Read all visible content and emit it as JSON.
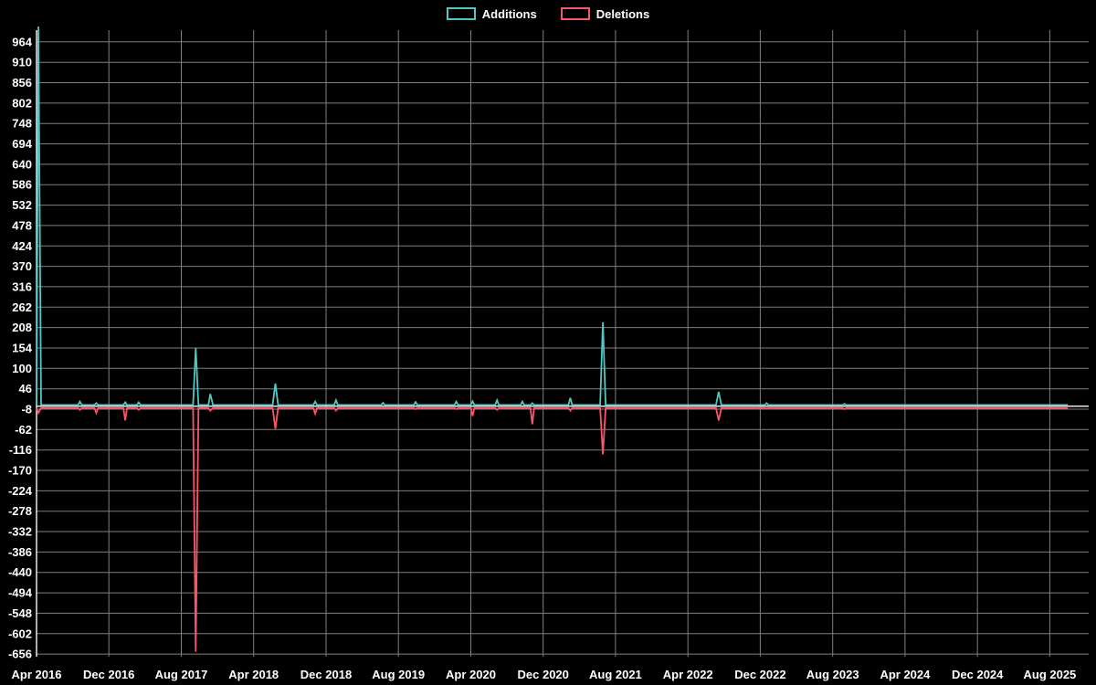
{
  "page": {
    "background_color": "#000000",
    "text_color": "#ffffff"
  },
  "chart_data": {
    "type": "line",
    "title": "",
    "legend_position": "top",
    "grid": true,
    "grid_color": "#7f7f7f",
    "axis_color": "#e9e9e9",
    "text_color": "#ffffff",
    "x_unit": "months since Apr 2016",
    "xlim": [
      0,
      116.3
    ],
    "ylim": [
      -663,
      995
    ],
    "x_axis": {
      "ticks": [
        {
          "m": 0,
          "label": "Apr 2016"
        },
        {
          "m": 8,
          "label": "Dec 2016"
        },
        {
          "m": 16,
          "label": "Aug 2017"
        },
        {
          "m": 24,
          "label": "Apr 2018"
        },
        {
          "m": 32,
          "label": "Dec 2018"
        },
        {
          "m": 40,
          "label": "Aug 2019"
        },
        {
          "m": 48,
          "label": "Apr 2020"
        },
        {
          "m": 56,
          "label": "Dec 2020"
        },
        {
          "m": 64,
          "label": "Aug 2021"
        },
        {
          "m": 72,
          "label": "Apr 2022"
        },
        {
          "m": 80,
          "label": "Dec 2022"
        },
        {
          "m": 88,
          "label": "Aug 2023"
        },
        {
          "m": 96,
          "label": "Apr 2024"
        },
        {
          "m": 104,
          "label": "Dec 2024"
        },
        {
          "m": 112,
          "label": "Aug 2025"
        }
      ]
    },
    "y_axis": {
      "ticks": [
        964,
        910,
        856,
        802,
        748,
        694,
        640,
        586,
        532,
        478,
        424,
        370,
        316,
        262,
        208,
        154,
        100,
        46,
        -8,
        -62,
        -116,
        -170,
        -224,
        -278,
        -332,
        -386,
        -440,
        -494,
        -548,
        -602,
        -656
      ]
    },
    "series": [
      {
        "name": "Additions",
        "color": "#4fc8c5",
        "points": [
          [
            0,
            3
          ],
          [
            0.2,
            1005
          ],
          [
            0.5,
            3
          ],
          [
            4.6,
            3
          ],
          [
            4.8,
            12
          ],
          [
            5,
            3
          ],
          [
            6.4,
            3
          ],
          [
            6.6,
            8
          ],
          [
            6.8,
            3
          ],
          [
            9.6,
            3
          ],
          [
            9.8,
            10
          ],
          [
            10,
            3
          ],
          [
            11.1,
            3
          ],
          [
            11.3,
            10
          ],
          [
            11.5,
            3
          ],
          [
            17.3,
            3
          ],
          [
            17.6,
            154
          ],
          [
            17.9,
            3
          ],
          [
            19,
            3
          ],
          [
            19.2,
            32
          ],
          [
            19.5,
            3
          ],
          [
            26.1,
            3
          ],
          [
            26.4,
            60
          ],
          [
            26.7,
            3
          ],
          [
            30.6,
            3
          ],
          [
            30.8,
            12
          ],
          [
            31,
            3
          ],
          [
            32.9,
            3
          ],
          [
            33.1,
            16
          ],
          [
            33.3,
            3
          ],
          [
            38.1,
            3
          ],
          [
            38.3,
            9
          ],
          [
            38.5,
            3
          ],
          [
            41.7,
            3
          ],
          [
            41.9,
            11
          ],
          [
            42.1,
            3
          ],
          [
            46.2,
            3
          ],
          [
            46.4,
            12
          ],
          [
            46.6,
            3
          ],
          [
            48,
            3
          ],
          [
            48.2,
            13
          ],
          [
            48.4,
            3
          ],
          [
            50.7,
            3
          ],
          [
            50.9,
            16
          ],
          [
            51.1,
            3
          ],
          [
            53.5,
            3
          ],
          [
            53.7,
            12
          ],
          [
            53.9,
            3
          ],
          [
            54.6,
            3
          ],
          [
            54.8,
            8
          ],
          [
            55,
            3
          ],
          [
            58.8,
            3
          ],
          [
            59,
            22
          ],
          [
            59.2,
            3
          ],
          [
            62.3,
            3
          ],
          [
            62.6,
            222
          ],
          [
            62.9,
            3
          ],
          [
            75.1,
            3
          ],
          [
            75.4,
            38
          ],
          [
            75.7,
            3
          ],
          [
            80.5,
            3
          ],
          [
            80.7,
            8
          ],
          [
            80.9,
            3
          ],
          [
            89.1,
            3
          ],
          [
            89.3,
            6
          ],
          [
            89.5,
            3
          ],
          [
            114,
            3
          ]
        ]
      },
      {
        "name": "Deletions",
        "color": "#f9566b",
        "points": [
          [
            0,
            -5
          ],
          [
            0.2,
            -18
          ],
          [
            0.5,
            -5
          ],
          [
            4.6,
            -5
          ],
          [
            4.8,
            -10
          ],
          [
            5,
            -5
          ],
          [
            6.4,
            -5
          ],
          [
            6.6,
            -18
          ],
          [
            6.8,
            -5
          ],
          [
            9.6,
            -5
          ],
          [
            9.8,
            -38
          ],
          [
            10,
            -5
          ],
          [
            11.1,
            -5
          ],
          [
            11.3,
            -10
          ],
          [
            11.5,
            -5
          ],
          [
            17.3,
            -5
          ],
          [
            17.6,
            -650
          ],
          [
            17.9,
            -5
          ],
          [
            19,
            -5
          ],
          [
            19.2,
            -12
          ],
          [
            19.5,
            -5
          ],
          [
            26.1,
            -5
          ],
          [
            26.4,
            -60
          ],
          [
            26.7,
            -5
          ],
          [
            30.6,
            -5
          ],
          [
            30.8,
            -20
          ],
          [
            31,
            -5
          ],
          [
            32.9,
            -5
          ],
          [
            33.1,
            -12
          ],
          [
            33.3,
            -5
          ],
          [
            41.7,
            -5
          ],
          [
            41.9,
            -8
          ],
          [
            42.1,
            -5
          ],
          [
            46.2,
            -5
          ],
          [
            46.4,
            -8
          ],
          [
            46.6,
            -5
          ],
          [
            48,
            -5
          ],
          [
            48.2,
            -26
          ],
          [
            48.4,
            -5
          ],
          [
            50.7,
            -5
          ],
          [
            50.9,
            -10
          ],
          [
            51.1,
            -5
          ],
          [
            54.6,
            -5
          ],
          [
            54.8,
            -48
          ],
          [
            55,
            -5
          ],
          [
            58.8,
            -5
          ],
          [
            59,
            -12
          ],
          [
            59.2,
            -5
          ],
          [
            62.3,
            -5
          ],
          [
            62.6,
            -128
          ],
          [
            62.9,
            -5
          ],
          [
            75.1,
            -5
          ],
          [
            75.4,
            -38
          ],
          [
            75.7,
            -5
          ],
          [
            80.5,
            -5
          ],
          [
            80.7,
            -6
          ],
          [
            80.9,
            -5
          ],
          [
            89.1,
            -5
          ],
          [
            89.3,
            -8
          ],
          [
            89.5,
            -5
          ],
          [
            114,
            -5
          ]
        ]
      }
    ]
  }
}
